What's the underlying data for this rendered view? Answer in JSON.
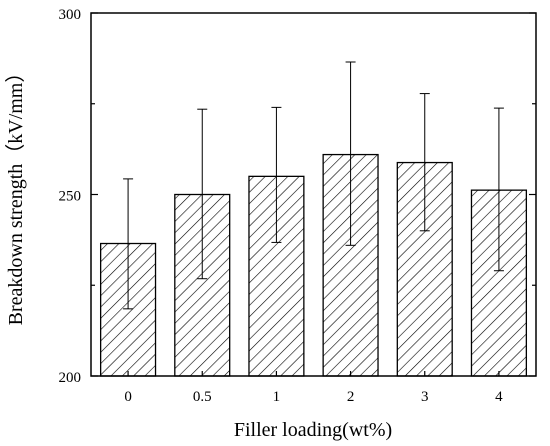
{
  "chart_data": {
    "type": "bar",
    "title": "",
    "xlabel": "Filler loading(wt%)",
    "ylabel": "Breakdown strength（kV/mm）",
    "categories": [
      "0",
      "0.5",
      "1",
      "2",
      "3",
      "4"
    ],
    "values": [
      236.5,
      250.0,
      255.0,
      261.0,
      258.8,
      251.2
    ],
    "error_high": [
      254.3,
      273.5,
      274.0,
      286.5,
      277.8,
      273.8
    ],
    "error_low": [
      218.5,
      226.8,
      236.8,
      236.0,
      240.0,
      229.0
    ],
    "ylim": [
      200,
      300
    ],
    "yticks": [
      "200",
      "250",
      "300"
    ],
    "bar_fill": "hatched",
    "bar_color": "#000000",
    "grid": false,
    "legend": "none"
  }
}
